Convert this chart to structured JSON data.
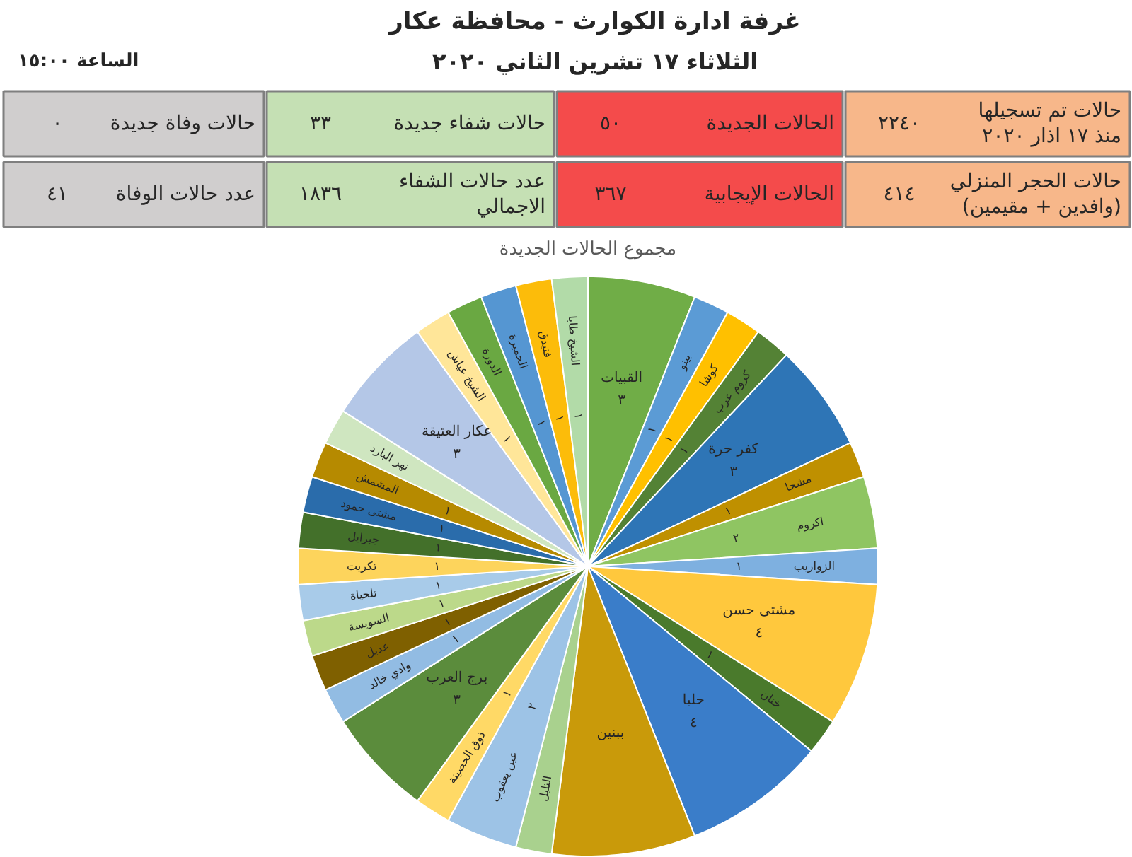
{
  "chart_data": [
    {
      "type": "other",
      "title": "غرفة ادارة الكوارث - محافظة عكار",
      "subtitle": "الثلاثاء ١٧ تشرين الثاني ٢٠٢٠",
      "annotations": [
        "الساعة ١٥:٠٠",
        "حالات تم تسجيلها منذ ١٧ اذار ٢٠٢٠",
        "٢٢٤٠",
        "الحالات الجديدة",
        "٥٠",
        "حالات شفاء جديدة",
        "٣٣",
        "حالات وفاة جديدة",
        "٠",
        "حالات الحجر المنزلي (وافدين + مقيمين)",
        "٤١٤",
        "الحالات الإيجابية",
        "٣٦٧",
        "عدد حالات الشفاء الاجمالي",
        "١٨٣٦",
        "عدد حالات الوفاة",
        "٤١"
      ],
      "colors": [
        "#f7b78a",
        "#f44b4b",
        "#c5e0b4",
        "#d0cece",
        "#f7b78a",
        "#f44b4b",
        "#c5e0b4",
        "#d0cece"
      ]
    },
    {
      "type": "pie",
      "title": "مجموع الحالات الجديدة",
      "categories": [
        "القبيات",
        "بينو",
        "كوشا",
        "كروم عرب",
        "كفر حرة",
        "مشحا",
        "اكروم",
        "الزواريب",
        "مشتى حسن",
        "خنان",
        "حلبا",
        "ببنين",
        "التليل",
        "عين يعقوب",
        "ذوق الحصينة",
        "برج العرب",
        "وادي خالد",
        "عدبل",
        "السويسة",
        "تلحياة",
        "تكريت",
        "جبرايل",
        "مشتى حمود",
        "المشمش",
        "نهر البارد",
        "عكار العتيقة",
        "الشيخ عياش",
        "الدورة",
        "الحميرة",
        "فنيدق",
        "الشيخ طابا"
      ],
      "values": [
        3,
        1,
        1,
        1,
        3,
        1,
        2,
        1,
        4,
        1,
        4,
        4,
        1,
        2,
        1,
        3,
        1,
        1,
        1,
        1,
        1,
        1,
        1,
        1,
        1,
        3,
        1,
        1,
        1,
        1,
        1
      ],
      "colors": [
        "#70ad47",
        "#5b9bd5",
        "#ffc000",
        "#548235",
        "#2e75b6",
        "#bf9000",
        "#8fc562",
        "#7eb0e0",
        "#ffc83d",
        "#4a7a2c",
        "#3a7dc9",
        "#c99a0a",
        "#a9d18e",
        "#9dc3e6",
        "#ffd966",
        "#5b8c3c",
        "#92bce3",
        "#7f6000",
        "#bcd98a",
        "#a8cbe9",
        "#fdd45c",
        "#43702a",
        "#2a6cab",
        "#b68a00",
        "#cfe6c0",
        "#b4c7e7",
        "#ffe699",
        "#6aa842",
        "#5596d2",
        "#fcbc0a",
        "#b2dba8"
      ],
      "value_labels": [
        "٣",
        "١",
        "١",
        "١",
        "٣",
        "١",
        "٢",
        "١",
        "٤",
        "١",
        "٤",
        null,
        null,
        "٢",
        "١",
        "٣",
        "١",
        "١",
        "١",
        "١",
        "١",
        "١",
        "١",
        "١",
        null,
        "٣",
        "١",
        null,
        "١",
        "١",
        "١"
      ]
    }
  ]
}
